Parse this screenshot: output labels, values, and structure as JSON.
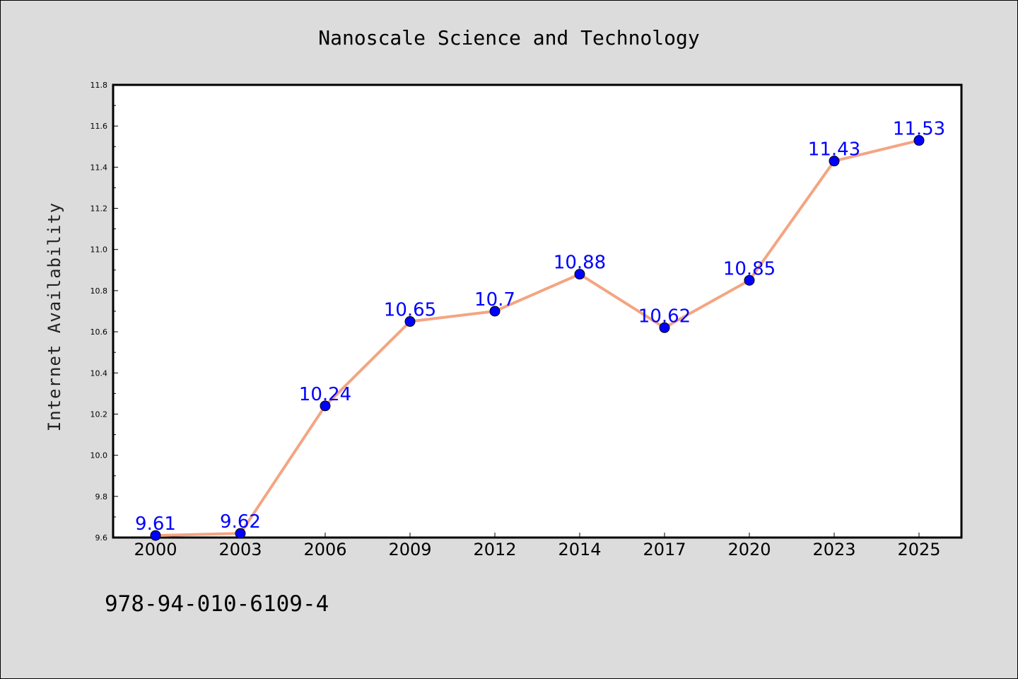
{
  "chart_data": {
    "type": "line",
    "title": "Nanoscale Science and Technology",
    "xlabel": "",
    "ylabel": "Internet Availability",
    "categories": [
      "2000",
      "2003",
      "2006",
      "2009",
      "2012",
      "2014",
      "2017",
      "2020",
      "2023",
      "2025"
    ],
    "series": [
      {
        "values": [
          9.61,
          9.62,
          10.24,
          10.65,
          10.7,
          10.88,
          10.62,
          10.85,
          11.43,
          11.53
        ],
        "labels": [
          "9.61",
          "9.62",
          "10.24",
          "10.65",
          "10.7",
          "10.88",
          "10.62",
          "10.85",
          "11.43",
          "11.53"
        ],
        "line_color": "#f4a582",
        "marker_color": "#0000ff"
      }
    ],
    "ylim": [
      9.6,
      11.8
    ],
    "yticks": [
      "9.6",
      "9.8",
      "10.0",
      "10.2",
      "10.4",
      "10.6",
      "10.8",
      "11.0",
      "11.2",
      "11.4",
      "11.6",
      "11.8"
    ],
    "grid": false,
    "legend": "none"
  },
  "footer": {
    "isbn": "978-94-010-6109-4"
  },
  "colors": {
    "background": "#dcdcdc",
    "plot_background": "#ffffff",
    "axis": "#000000",
    "label_color": "#0000ff"
  }
}
